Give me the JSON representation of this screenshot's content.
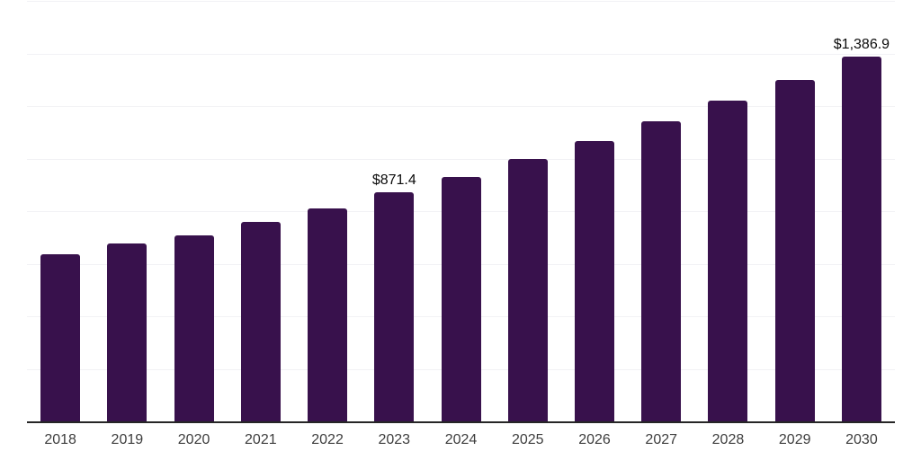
{
  "chart_data": {
    "type": "bar",
    "title": "",
    "xlabel": "",
    "ylabel": "",
    "categories": [
      "2018",
      "2019",
      "2020",
      "2021",
      "2022",
      "2023",
      "2024",
      "2025",
      "2026",
      "2027",
      "2028",
      "2029",
      "2030"
    ],
    "values": [
      636,
      677,
      708,
      758,
      810,
      871.4,
      930,
      998,
      1068,
      1143,
      1222,
      1301,
      1386.9
    ],
    "annotations": [
      {
        "category": "2023",
        "text": "$871.4"
      },
      {
        "category": "2030",
        "text": "$1,386.9"
      }
    ],
    "ylim": [
      0,
      1600
    ],
    "grid_step": 200,
    "grid": "horizontal-only",
    "y_tick_labels_visible": false,
    "legend": "none"
  },
  "style": {
    "bar_color": "#38114C",
    "gridline_color": "#f2f2f5",
    "axis_line_color": "#262626",
    "tick_label_color": "#3d3d3d",
    "annotation_color": "#0b0b0b",
    "background": "#ffffff"
  }
}
